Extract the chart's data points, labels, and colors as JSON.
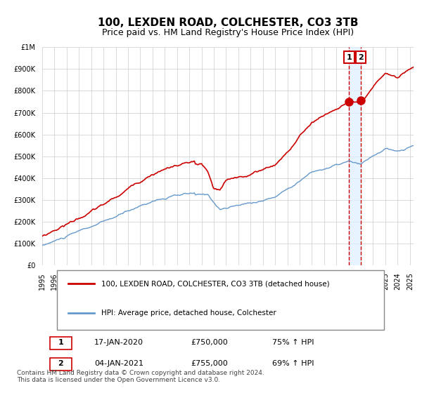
{
  "title": "100, LEXDEN ROAD, COLCHESTER, CO3 3TB",
  "subtitle": "Price paid vs. HM Land Registry's House Price Index (HPI)",
  "legend_line1": "100, LEXDEN ROAD, COLCHESTER, CO3 3TB (detached house)",
  "legend_line2": "HPI: Average price, detached house, Colchester",
  "transaction1_label": "1",
  "transaction1_date": "17-JAN-2020",
  "transaction1_price": "£750,000",
  "transaction1_hpi": "75% ↑ HPI",
  "transaction2_label": "2",
  "transaction2_date": "04-JAN-2021",
  "transaction2_price": "£755,000",
  "transaction2_hpi": "69% ↑ HPI",
  "footer": "Contains HM Land Registry data © Crown copyright and database right 2024.\nThis data is licensed under the Open Government Licence v3.0.",
  "red_color": "#cc0000",
  "blue_color": "#6699cc",
  "vline_color": "#cc0000",
  "shade_color": "#ddeeff",
  "background_color": "#ffffff",
  "grid_color": "#cccccc",
  "ylim": [
    0,
    1000000
  ],
  "xlim_start": 1995.0,
  "xlim_end": 2025.3,
  "transaction1_x": 2020.04,
  "transaction2_x": 2021.01,
  "transaction1_y": 750000,
  "transaction2_y": 755000
}
